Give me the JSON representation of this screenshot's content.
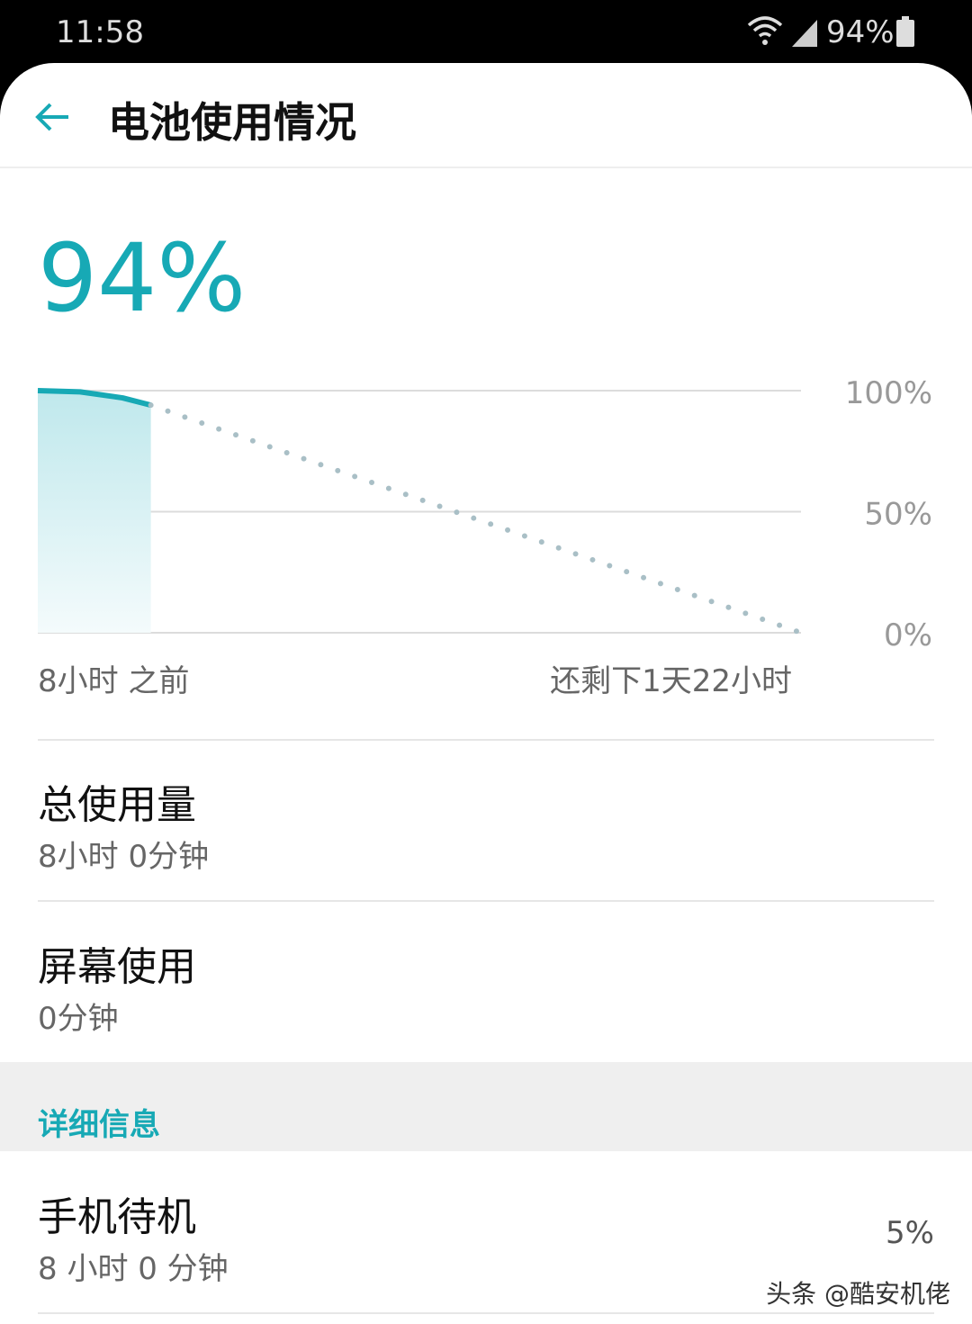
{
  "status_bar": {
    "time": "11:58",
    "battery": "94%"
  },
  "header": {
    "title": "电池使用情况"
  },
  "battery_level": "94%",
  "chart_data": {
    "type": "line",
    "x": [
      -8,
      -5,
      -2,
      0
    ],
    "values": [
      100,
      99.5,
      97,
      94
    ],
    "color": "#17a9b5",
    "projection": {
      "x": [
        0,
        46
      ],
      "values": [
        94,
        0
      ],
      "color": "#a9bfc6"
    },
    "xlim": [
      -8,
      46
    ],
    "ylim": [
      0,
      100
    ],
    "yticks": [
      {
        "value": 100,
        "label": "100%"
      },
      {
        "value": 50,
        "label": "50%"
      },
      {
        "value": 0,
        "label": "0%"
      }
    ],
    "grid": true,
    "x_start_label": "8小时 之前",
    "x_end_label": "还剩下1天22小时"
  },
  "items": [
    {
      "title": "总使用量",
      "subtitle": "8小时 0分钟"
    },
    {
      "title": "屏幕使用",
      "subtitle": "0分钟"
    }
  ],
  "section": {
    "title": "详细信息"
  },
  "details": [
    {
      "title": "手机待机",
      "subtitle": "8 小时 0 分钟",
      "percent": "5%"
    }
  ],
  "watermark": "头条 @酷安机佬"
}
